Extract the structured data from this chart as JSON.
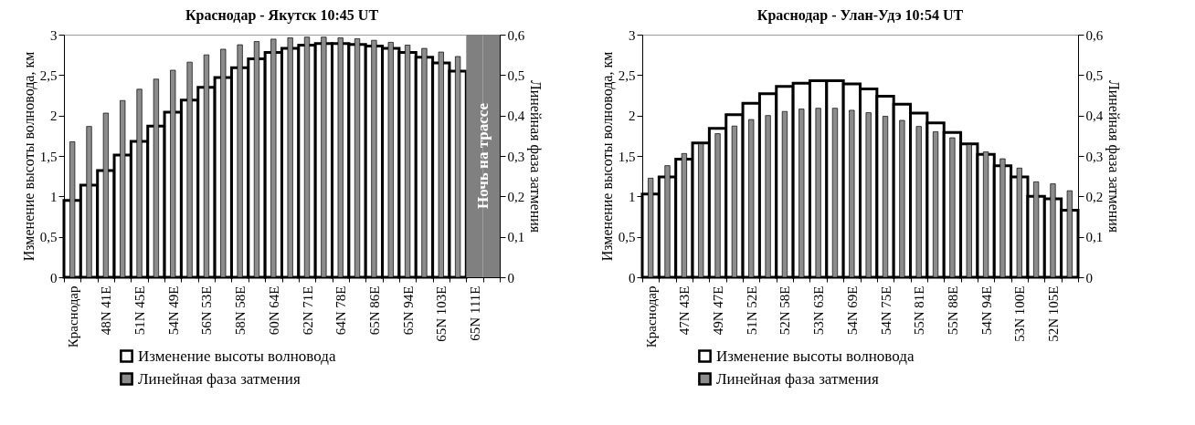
{
  "chart_data": [
    {
      "type": "bar",
      "title": "Краснодар - Якутск 10:45 UT",
      "ylabel": "Изменение высоты волновода, км",
      "y2label": "Линейная фаза затмения",
      "categories": [
        "Краснодар",
        null,
        "48N 41E",
        null,
        "51N 45E",
        null,
        "54N 49E",
        null,
        "56N 53E",
        null,
        "58N 58E",
        null,
        "60N 64E",
        null,
        "62N 71E",
        null,
        "64N 78E",
        null,
        "65N 86E",
        null,
        "65N 94E",
        null,
        "65N 103E",
        null,
        "65N 111E",
        null
      ],
      "series": [
        {
          "name": "Изменение высоты волновода",
          "color": "#000000",
          "values": [
            0.95,
            1.14,
            1.32,
            1.51,
            1.68,
            1.87,
            2.04,
            2.19,
            2.35,
            2.47,
            2.59,
            2.7,
            2.78,
            2.83,
            2.87,
            2.89,
            2.89,
            2.88,
            2.86,
            2.83,
            2.78,
            2.72,
            2.65,
            2.55,
            null,
            null
          ]
        },
        {
          "color": "#808080",
          "values": [
            null,
            null,
            null,
            null,
            null,
            null,
            null,
            null,
            null,
            null,
            null,
            null,
            null,
            null,
            null,
            null,
            null,
            null,
            null,
            null,
            null,
            null,
            null,
            null,
            3,
            3
          ]
        },
        {
          "name": "Линейная фаза затмения",
          "color": "#8c8c8c",
          "axis": "y2",
          "values": [
            0.335,
            0.373,
            0.406,
            0.437,
            0.465,
            0.49,
            0.512,
            0.532,
            0.55,
            0.564,
            0.575,
            0.583,
            0.589,
            0.592,
            0.594,
            0.594,
            0.592,
            0.59,
            0.586,
            0.581,
            0.574,
            0.566,
            0.557,
            0.546,
            null,
            null
          ]
        }
      ],
      "ylim": [
        0,
        3
      ],
      "yticks": [
        0,
        {
          "value": 0.5,
          "label": "0,5"
        },
        1,
        {
          "value": 1.5,
          "label": "1,5"
        },
        2,
        {
          "value": 2.5,
          "label": "2,5"
        },
        3
      ],
      "y2lim": [
        0,
        0.6
      ],
      "y2ticks": [
        0,
        {
          "value": 0.1,
          "label": "0,1"
        },
        {
          "value": 0.2,
          "label": "0,2"
        },
        {
          "value": 0.3,
          "label": "0,3"
        },
        {
          "value": 0.4,
          "label": "0,4"
        },
        {
          "value": 0.5,
          "label": "0,5"
        },
        {
          "value": 0.6,
          "label": "0,6"
        }
      ],
      "annotations": [
        "Ночь на трассе"
      ],
      "legend": "bottom",
      "grid": false
    },
    {
      "type": "bar",
      "title": "Краснодар - Улан-Удэ 10:54 UT",
      "ylabel": "Изменение высоты волновода, км",
      "y2label": "Линейная фаза затмения",
      "categories": [
        "Краснодар",
        null,
        "47N 43E",
        null,
        "49N 47E",
        null,
        "51N 52E",
        null,
        "52N 58E",
        null,
        "53N 63E",
        null,
        "54N 69E",
        null,
        "54N 75E",
        null,
        "55N 81E",
        null,
        "55N 88E",
        null,
        "54N 94E",
        null,
        "53N 100E",
        null,
        "52N 105E",
        null
      ],
      "series": [
        {
          "name": "Изменение высоты волновода",
          "color": "#000000",
          "values": [
            1.03,
            1.24,
            1.46,
            1.66,
            1.84,
            2.01,
            2.15,
            2.27,
            2.36,
            2.4,
            2.43,
            2.43,
            2.39,
            2.33,
            2.24,
            2.14,
            2.03,
            1.91,
            1.79,
            1.65,
            1.52,
            1.38,
            1.24,
            1.0,
            0.97,
            0.83
          ]
        },
        {
          "name": "Линейная фаза затмения",
          "color": "#8c8c8c",
          "axis": "y2",
          "values": [
            0.245,
            0.276,
            0.306,
            0.33,
            0.355,
            0.374,
            0.39,
            0.4,
            0.41,
            0.416,
            0.418,
            0.418,
            0.413,
            0.407,
            0.398,
            0.388,
            0.373,
            0.36,
            0.345,
            0.328,
            0.31,
            0.293,
            0.27,
            0.236,
            0.231,
            0.214
          ]
        }
      ],
      "ylim": [
        0,
        3
      ],
      "yticks": [
        0,
        {
          "value": 0.5,
          "label": "0,5"
        },
        1,
        {
          "value": 1.5,
          "label": "1,5"
        },
        2,
        {
          "value": 2.5,
          "label": "2,5"
        },
        3
      ],
      "y2lim": [
        0,
        0.6
      ],
      "y2ticks": [
        0,
        {
          "value": 0.1,
          "label": "0,1"
        },
        {
          "value": 0.2,
          "label": "0,2"
        },
        {
          "value": 0.3,
          "label": "0,3"
        },
        {
          "value": 0.4,
          "label": "0,4"
        },
        {
          "value": 0.5,
          "label": "0,5"
        },
        {
          "value": 0.6,
          "label": "0,6"
        }
      ],
      "legend": "bottom",
      "grid": false
    }
  ]
}
